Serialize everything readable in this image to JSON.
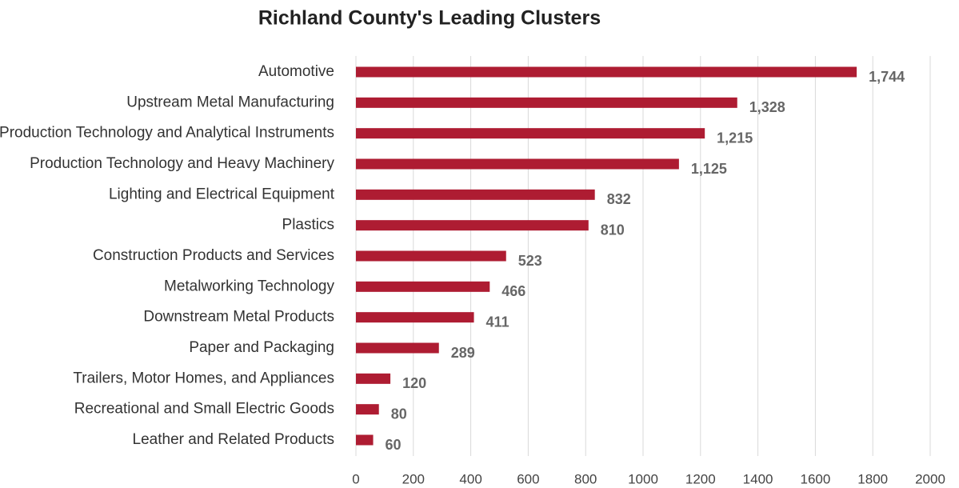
{
  "chart_data": {
    "type": "bar",
    "orientation": "horizontal",
    "title": "Richland County's Leading Clusters",
    "categories": [
      "Automotive",
      "Upstream Metal Manufacturing",
      "Production Technology and Analytical Instruments",
      "Production Technology and Heavy Machinery",
      "Lighting and Electrical Equipment",
      "Plastics",
      "Construction Products and Services",
      "Metalworking Technology",
      "Downstream Metal Products",
      "Paper and Packaging",
      "Trailers, Motor Homes, and Appliances",
      "Recreational and Small Electric Goods",
      "Leather and Related Products"
    ],
    "values": [
      1744,
      1328,
      1215,
      1125,
      832,
      810,
      523,
      466,
      411,
      289,
      120,
      80,
      60
    ],
    "value_labels": [
      "1,744",
      "1,328",
      "1,215",
      "1,125",
      "832",
      "810",
      "523",
      "466",
      "411",
      "289",
      "120",
      "80",
      "60"
    ],
    "color": "#ae1c32",
    "xlim": [
      0,
      2000
    ],
    "xticks": [
      0,
      200,
      400,
      600,
      800,
      1000,
      1200,
      1400,
      1600,
      1800,
      2000
    ],
    "grid": true
  }
}
